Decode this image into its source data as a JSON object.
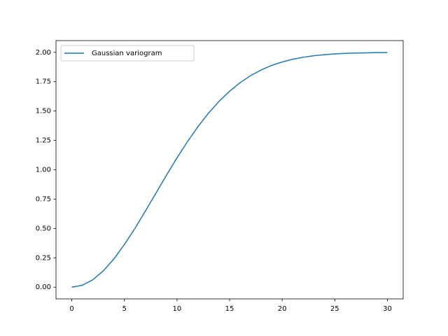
{
  "chart_data": {
    "type": "line",
    "x": [
      0,
      1,
      2,
      3,
      4,
      5,
      6,
      7,
      8,
      9,
      10,
      11,
      12,
      13,
      14,
      15,
      16,
      17,
      18,
      19,
      20,
      21,
      22,
      23,
      24,
      25,
      26,
      27,
      28,
      29,
      30
    ],
    "series": [
      {
        "name": "Gaussian variogram",
        "color": "#1f77b4",
        "values": [
          0,
          0.016,
          0.063,
          0.139,
          0.24,
          0.363,
          0.5,
          0.649,
          0.801,
          0.954,
          1.101,
          1.24,
          1.368,
          1.483,
          1.583,
          1.669,
          1.742,
          1.802,
          1.85,
          1.889,
          1.918,
          1.941,
          1.958,
          1.971,
          1.98,
          1.987,
          1.991,
          1.994,
          1.996,
          1.998,
          1.998
        ]
      }
    ],
    "xlim": [
      -1.5,
      31.5
    ],
    "xticks": [
      0,
      5,
      10,
      15,
      20,
      25,
      30
    ],
    "ylim": [
      -0.1,
      2.1
    ],
    "yticks": [
      {
        "value": 0,
        "label": "0.00"
      },
      {
        "value": 0.25,
        "label": "0.25"
      },
      {
        "value": 0.5,
        "label": "0.50"
      },
      {
        "value": 0.75,
        "label": "0.75"
      },
      {
        "value": 1,
        "label": "1.00"
      },
      {
        "value": 1.25,
        "label": "1.25"
      },
      {
        "value": 1.5,
        "label": "1.50"
      },
      {
        "value": 1.75,
        "label": "1.75"
      },
      {
        "value": 2,
        "label": "2.00"
      }
    ],
    "legend": "upper left",
    "grid": false
  }
}
